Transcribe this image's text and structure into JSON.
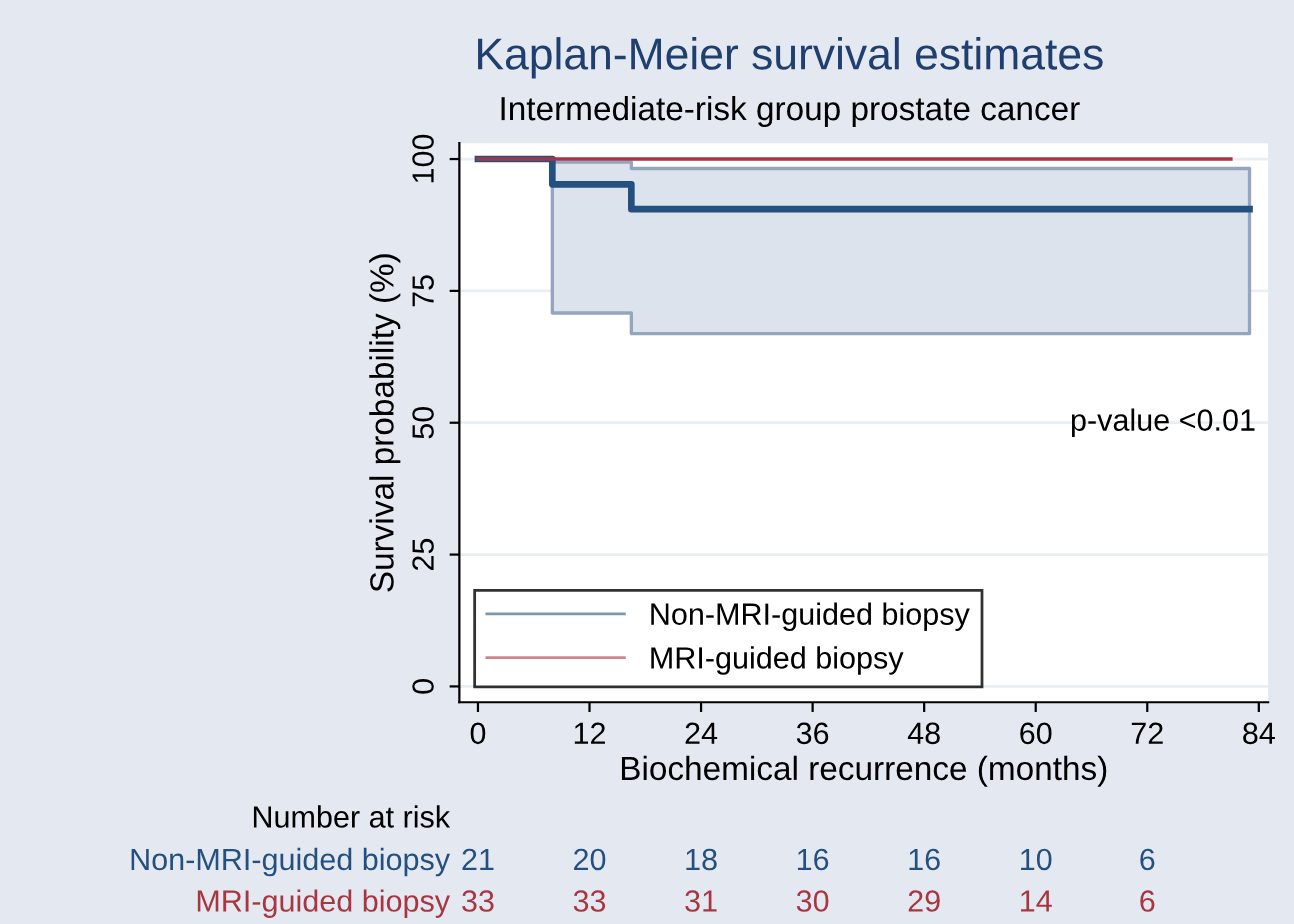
{
  "chart_data": {
    "type": "step",
    "title": "Kaplan-Meier survival estimates",
    "subtitle": "Intermediate-risk group prostate cancer",
    "xlabel": "Biochemical recurrence (months)",
    "ylabel": "Survival probability (%)",
    "series": [
      {
        "name": "Non-MRI-guided biopsy",
        "color": "#24507f",
        "x": [
          0,
          8,
          16.5,
          83
        ],
        "values": [
          100,
          95.2,
          90.5,
          90.5
        ],
        "lower": [
          null,
          70.8,
          66.9,
          66.9
        ],
        "upper": [
          null,
          99.4,
          98.2,
          98.2
        ]
      },
      {
        "name": "MRI-guided biopsy",
        "color": "#a8353f",
        "x": [
          0,
          81
        ],
        "values": [
          100,
          100
        ]
      }
    ],
    "xlim": [
      -2,
      85
    ],
    "ylim": [
      -3,
      103
    ],
    "xticks": [
      0,
      12,
      24,
      36,
      48,
      60,
      72,
      84
    ],
    "yticks": [
      0,
      25,
      50,
      75,
      100
    ],
    "grid": "y",
    "legend": "bottom left",
    "annotations": [
      "p-value <0.01",
      "Number at risk",
      "Non-MRI-guided biopsy",
      "21",
      "20",
      "18",
      "16",
      "16",
      "10",
      "6",
      "MRI-guided biopsy",
      "33",
      "33",
      "31",
      "30",
      "29",
      "14",
      "6"
    ]
  }
}
